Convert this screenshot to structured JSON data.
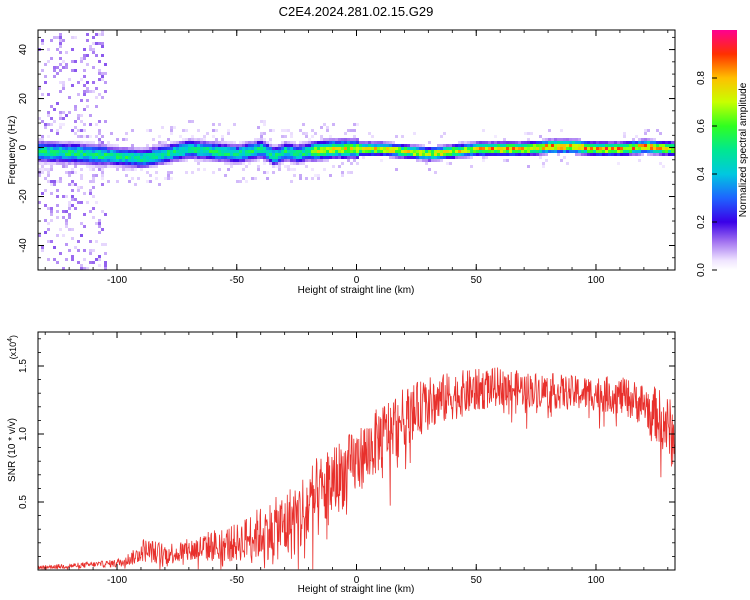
{
  "title": "C2E4.2024.281.02.15.G29",
  "chart_data": [
    {
      "type": "heatmap",
      "xlabel": "Height of straight line (km)",
      "ylabel": "Frequency (Hz)",
      "xlim": [
        -133,
        133
      ],
      "ylim": [
        -50,
        48
      ],
      "xticks": [
        -100,
        -50,
        0,
        50,
        100
      ],
      "yticks": [
        -40,
        -20,
        0,
        20,
        40
      ],
      "grid": false,
      "colorbar": {
        "label": "Normalized spectral amplitude",
        "range": [
          0,
          1
        ],
        "ticks": [
          0.0,
          0.2,
          0.4,
          0.6,
          0.8
        ]
      },
      "ridge": [
        {
          "x": -133,
          "y": -1
        },
        {
          "x": -115,
          "y": -2
        },
        {
          "x": -100,
          "y": -3
        },
        {
          "x": -90,
          "y": -4
        },
        {
          "x": -80,
          "y": -2
        },
        {
          "x": -70,
          "y": 0
        },
        {
          "x": -60,
          "y": -1
        },
        {
          "x": -50,
          "y": -2
        },
        {
          "x": -40,
          "y": 0
        },
        {
          "x": -35,
          "y": -3
        },
        {
          "x": -30,
          "y": -1
        },
        {
          "x": -25,
          "y": -2
        },
        {
          "x": -20,
          "y": -1
        },
        {
          "x": -10,
          "y": 0
        },
        {
          "x": 0,
          "y": 0
        },
        {
          "x": 10,
          "y": 0
        },
        {
          "x": 20,
          "y": -1
        },
        {
          "x": 30,
          "y": -2
        },
        {
          "x": 40,
          "y": -1
        },
        {
          "x": 50,
          "y": 0
        },
        {
          "x": 60,
          "y": 0
        },
        {
          "x": 70,
          "y": 0
        },
        {
          "x": 80,
          "y": 1
        },
        {
          "x": 90,
          "y": 1
        },
        {
          "x": 100,
          "y": 0
        },
        {
          "x": 110,
          "y": 0
        },
        {
          "x": 120,
          "y": 1
        },
        {
          "x": 133,
          "y": 0
        }
      ]
    },
    {
      "type": "line",
      "xlabel": "Height of straight line (km)",
      "ylabel": "SNR (10 * v/v)",
      "yscale_label": "(x10",
      "yscale_exp": "4",
      "xlim": [
        -133,
        133
      ],
      "ylim": [
        0,
        1.75
      ],
      "xticks": [
        -100,
        -50,
        0,
        50,
        100
      ],
      "yticks": [
        0.5,
        1.0,
        1.5
      ],
      "ytick_labels": [
        "0.5",
        "1.0",
        "1.5"
      ],
      "grid": false,
      "series": [
        {
          "color": "#e8302c",
          "x": [
            -133,
            -120,
            -110,
            -100,
            -92,
            -90,
            -80,
            -70,
            -60,
            -50,
            -45,
            -40,
            -35,
            -30,
            -25,
            -20,
            -15,
            -10,
            -5,
            0,
            5,
            10,
            15,
            20,
            25,
            30,
            35,
            40,
            45,
            50,
            60,
            70,
            80,
            90,
            100,
            110,
            120,
            125,
            130,
            133
          ],
          "y": [
            0.02,
            0.03,
            0.04,
            0.05,
            0.1,
            0.15,
            0.12,
            0.14,
            0.18,
            0.2,
            0.24,
            0.27,
            0.3,
            0.32,
            0.38,
            0.45,
            0.55,
            0.65,
            0.72,
            0.8,
            0.88,
            0.97,
            1.05,
            1.12,
            1.18,
            1.22,
            1.25,
            1.28,
            1.3,
            1.32,
            1.35,
            1.33,
            1.32,
            1.3,
            1.3,
            1.28,
            1.22,
            1.15,
            1.05,
            0.95
          ],
          "noise": [
            0.01,
            0.02,
            0.02,
            0.03,
            0.06,
            0.09,
            0.08,
            0.09,
            0.12,
            0.14,
            0.17,
            0.2,
            0.22,
            0.26,
            0.3,
            0.32,
            0.3,
            0.28,
            0.26,
            0.24,
            0.24,
            0.25,
            0.24,
            0.22,
            0.2,
            0.2,
            0.19,
            0.18,
            0.17,
            0.16,
            0.14,
            0.13,
            0.13,
            0.13,
            0.13,
            0.14,
            0.16,
            0.2,
            0.24,
            0.26
          ]
        }
      ]
    }
  ]
}
